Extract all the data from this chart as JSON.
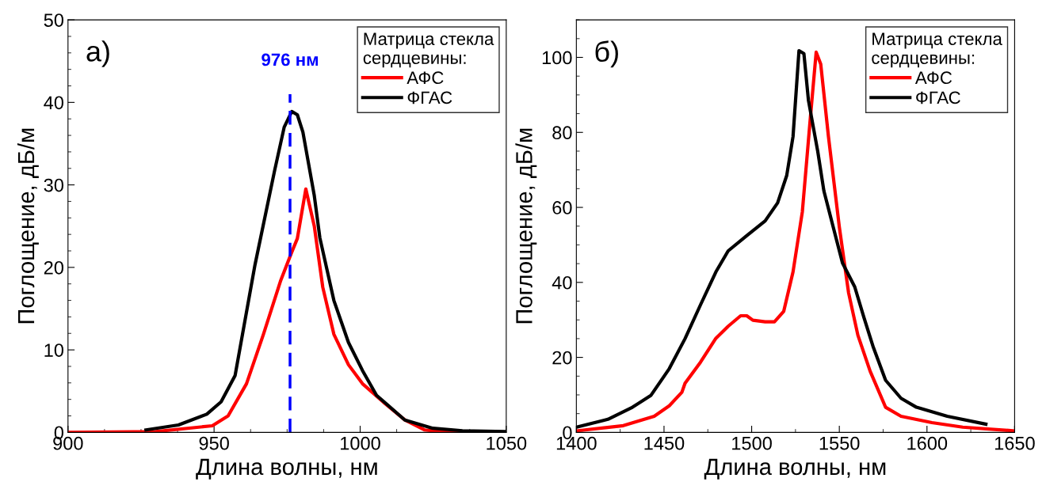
{
  "chart_data": [
    {
      "type": "line",
      "xlabel": "Длина волны, нм",
      "ylabel": "Поглощение, дБ/м",
      "legend_title": "Матрица стекла\nсердцевины:",
      "legend": "top right",
      "annotations": [
        "а)"
      ],
      "xlim": [
        900,
        1050
      ],
      "xticks": [
        900,
        950,
        1000,
        1050
      ],
      "ylim": [
        0,
        50
      ],
      "yticks": [
        0,
        10,
        20,
        30,
        40,
        50
      ],
      "ref_lines": [
        {
          "axis": "x",
          "value": 976,
          "label": "976 нм",
          "color": "#0000ff",
          "line_style": "dashed"
        }
      ],
      "series": [
        {
          "name": "АФС",
          "color": "#ff0000",
          "x": [
            900,
            930,
            949.4,
            954.8,
            961.1,
            966.9,
            972.7,
            976.3,
            978.5,
            981.4,
            984.3,
            987.2,
            991,
            996,
            1000.8,
            1008.5,
            1015.3,
            1022,
            1030,
            1050
          ],
          "values": [
            0,
            0.1,
            0.8,
            2.0,
            5.9,
            11.9,
            18.3,
            21.6,
            23.5,
            29.5,
            25,
            17.6,
            11.9,
            8.2,
            5.9,
            3.5,
            1.5,
            0.3,
            0,
            0
          ]
        },
        {
          "name": "ФГАС",
          "color": "#000000",
          "x": [
            926.7,
            937.8,
            947.5,
            952.4,
            957.2,
            964,
            970.7,
            974,
            976.6,
            978.5,
            980.4,
            984.3,
            986.2,
            991,
            996,
            1000.8,
            1005.6,
            1015.3,
            1024.9,
            1035,
            1050
          ],
          "values": [
            0.3,
            0.9,
            2.2,
            3.7,
            6.9,
            20.3,
            31.7,
            37,
            38.9,
            38.5,
            36.4,
            28.7,
            23.6,
            16,
            10.9,
            7.5,
            4.5,
            1.5,
            0.5,
            0.2,
            0.1
          ]
        }
      ]
    },
    {
      "type": "line",
      "xlabel": "Длина волны, нм",
      "ylabel": "Поглощение, дБ/м",
      "legend_title": "Матрица стекла\nсердцевины:",
      "legend": "top right",
      "annotations": [
        "б)"
      ],
      "xlim": [
        1400,
        1650
      ],
      "xticks": [
        1400,
        1450,
        1500,
        1550,
        1600,
        1650
      ],
      "ylim": [
        0,
        110
      ],
      "yticks": [
        0,
        20,
        40,
        60,
        80,
        100
      ],
      "series": [
        {
          "name": "АФС",
          "color": "#ff0000",
          "x": [
            1400,
            1426.8,
            1444.4,
            1453,
            1460.2,
            1462,
            1470.8,
            1479.6,
            1486.6,
            1493.7,
            1497.2,
            1500.7,
            1507.7,
            1513,
            1518.3,
            1523.6,
            1528.9,
            1533.3,
            1536.8,
            1539.4,
            1543.8,
            1550,
            1555.3,
            1560.6,
            1567.6,
            1576.4,
            1585.2,
            1602.8,
            1620.4,
            1650
          ],
          "values": [
            0.4,
            1.8,
            4.3,
            7.1,
            10.7,
            13.1,
            18.7,
            25.1,
            28.3,
            31.1,
            31.1,
            29.9,
            29.5,
            29.5,
            32.3,
            42.8,
            58.8,
            82.9,
            101.4,
            98.2,
            78.9,
            54.8,
            37.2,
            25.9,
            16.3,
            6.7,
            4.3,
            2.6,
            1.4,
            0.4
          ]
        },
        {
          "name": "ФГАС",
          "color": "#000000",
          "x": [
            1400,
            1418,
            1432,
            1442.6,
            1453,
            1462,
            1470.8,
            1479.6,
            1486.6,
            1497,
            1507.7,
            1514.8,
            1520,
            1523.6,
            1527,
            1529.8,
            1532.4,
            1537.7,
            1541.2,
            1546.5,
            1551.8,
            1558.8,
            1564,
            1569.4,
            1576.4,
            1585.2,
            1594,
            1611.6,
            1633.6
          ],
          "values": [
            1.4,
            3.5,
            6.7,
            9.9,
            17,
            25,
            34,
            42.8,
            48.4,
            52.4,
            56.4,
            61.2,
            68.5,
            78.9,
            101.8,
            101,
            88.5,
            74.9,
            64.4,
            54.8,
            45.2,
            38.8,
            30.7,
            22.7,
            13.9,
            9.1,
            6.7,
            4.3,
            2.2
          ]
        }
      ]
    }
  ]
}
